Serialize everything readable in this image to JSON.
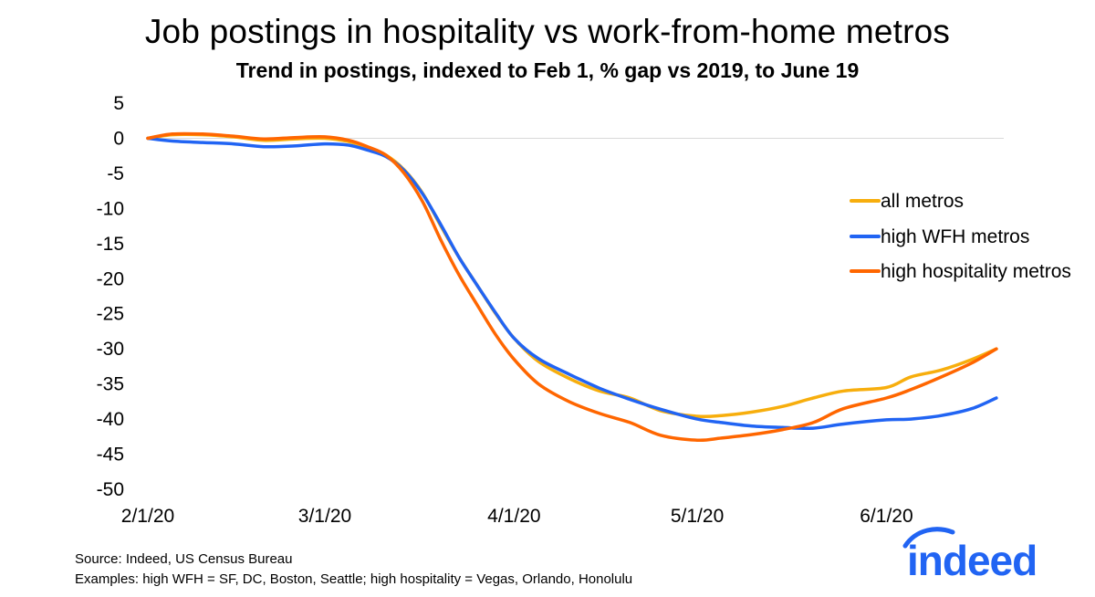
{
  "chart_data": {
    "type": "line",
    "title": "Job postings in hospitality vs work-from-home metros",
    "subtitle": "Trend in postings, indexed to Feb 1, % gap vs 2019, to June 19",
    "xlabel": "",
    "ylabel": "",
    "x_ticks": [
      "2/1/20",
      "3/1/20",
      "4/1/20",
      "5/1/20",
      "6/1/20"
    ],
    "xlim": [
      "2020-02-01",
      "2020-06-19"
    ],
    "ylim": [
      -50,
      5
    ],
    "y_ticks": [
      5,
      0,
      -5,
      -10,
      -15,
      -20,
      -25,
      -30,
      -35,
      -40,
      -45,
      -50
    ],
    "grid": "horizontal line at 0",
    "legend_position": "right",
    "x": [
      "2020-02-01",
      "2020-02-05",
      "2020-02-10",
      "2020-02-15",
      "2020-02-20",
      "2020-02-25",
      "2020-03-01",
      "2020-03-05",
      "2020-03-08",
      "2020-03-11",
      "2020-03-14",
      "2020-03-17",
      "2020-03-20",
      "2020-03-23",
      "2020-03-26",
      "2020-03-29",
      "2020-04-01",
      "2020-04-05",
      "2020-04-10",
      "2020-04-15",
      "2020-04-20",
      "2020-04-25",
      "2020-05-01",
      "2020-05-05",
      "2020-05-10",
      "2020-05-15",
      "2020-05-20",
      "2020-05-25",
      "2020-06-01",
      "2020-06-05",
      "2020-06-10",
      "2020-06-15",
      "2020-06-19"
    ],
    "series": [
      {
        "name": "all metros",
        "color": "#F7AE0D",
        "values": [
          0,
          0.5,
          0.5,
          0.2,
          -0.3,
          -0.1,
          0,
          -0.5,
          -1.3,
          -2.4,
          -4.5,
          -7.8,
          -12.5,
          -17.0,
          -21.0,
          -25.0,
          -28.5,
          -31.8,
          -34.2,
          -36.0,
          -37.0,
          -38.8,
          -39.6,
          -39.5,
          -39.0,
          -38.2,
          -37.0,
          -36.0,
          -35.5,
          -34.0,
          -33.0,
          -31.5,
          -30.0
        ]
      },
      {
        "name": "high WFH metros",
        "color": "#2164F3",
        "values": [
          0,
          -0.4,
          -0.6,
          -0.8,
          -1.2,
          -1.1,
          -0.8,
          -1.0,
          -1.7,
          -2.6,
          -4.6,
          -7.9,
          -12.3,
          -17.0,
          -21.0,
          -24.9,
          -28.5,
          -31.4,
          -33.6,
          -35.6,
          -37.2,
          -38.6,
          -40.0,
          -40.5,
          -41.0,
          -41.2,
          -41.3,
          -40.7,
          -40.1,
          -40.0,
          -39.5,
          -38.5,
          -37.0
        ]
      },
      {
        "name": "high hospitality metros",
        "color": "#FF6600",
        "values": [
          0,
          0.6,
          0.6,
          0.3,
          -0.1,
          0.1,
          0.2,
          -0.3,
          -1.2,
          -2.4,
          -5.0,
          -9.0,
          -14.5,
          -19.5,
          -23.8,
          -28.0,
          -31.5,
          -35.0,
          -37.5,
          -39.2,
          -40.5,
          -42.3,
          -43.0,
          -42.7,
          -42.2,
          -41.5,
          -40.5,
          -38.5,
          -37.0,
          -35.8,
          -34.0,
          -32.0,
          -30.0
        ]
      }
    ]
  },
  "footer": {
    "source": "Source: Indeed, US Census Bureau",
    "examples": "Examples: high WFH = SF, DC, Boston, Seattle; high hospitality = Vegas, Orlando, Honolulu"
  },
  "logo": {
    "text": "indeed",
    "color": "#2164F3"
  }
}
